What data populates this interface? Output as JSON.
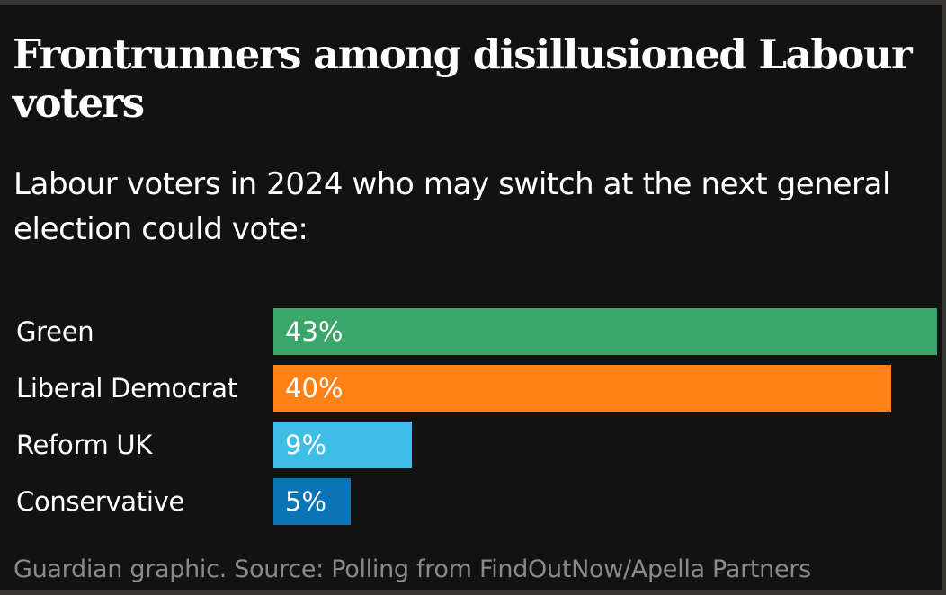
{
  "chart_data": {
    "type": "bar",
    "orientation": "horizontal",
    "title": "Frontrunners among disillusioned Labour voters",
    "subtitle": "Labour voters in 2024 who may switch at the next general election could vote:",
    "categories": [
      "Green",
      "Liberal Democrat",
      "Reform UK",
      "Conservative"
    ],
    "values": [
      43,
      40,
      9,
      5
    ],
    "value_labels": [
      "43%",
      "40%",
      "9%",
      "5%"
    ],
    "colors": [
      "#3aa66a",
      "#ff8118",
      "#3ebde6",
      "#0a75b6"
    ],
    "xlim": [
      0,
      43
    ],
    "grid": false,
    "xlabel": "",
    "ylabel": ""
  },
  "source": "Guardian graphic. Source: Polling from FindOutNow/Apella Partners",
  "colors": {
    "background": "#121212",
    "text": "#ffffff",
    "source_text": "#8a8a8a"
  }
}
